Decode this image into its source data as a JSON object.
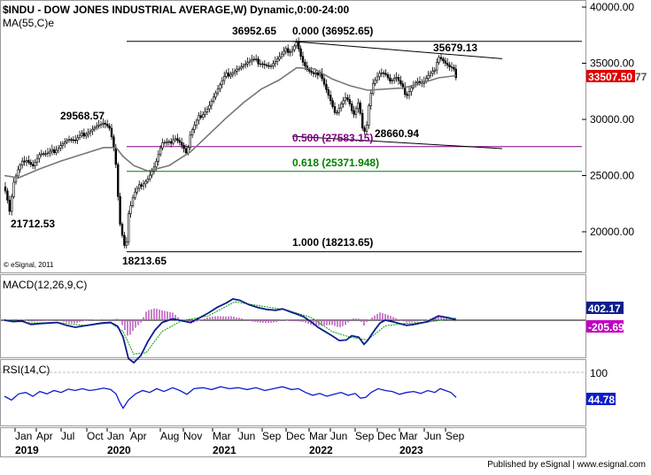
{
  "chart_data": [
    {
      "type": "candlestick",
      "title": "$INDU - DOW JONES INDUSTRIAL AVERAGE,W) Dynamic,0:00-24:00",
      "indicator_label": "MA(55,C)e",
      "watermark": "© eSignal, 2011",
      "last_price": "33507.50",
      "last_price_suffix": "77",
      "y_ticks": [
        "40000.00",
        "35000.00",
        "30000.00",
        "25000.00",
        "20000.00"
      ],
      "ylim": [
        16000,
        40700
      ],
      "x_ticks": [
        "Jan",
        "Apr",
        "Jul",
        "Oct",
        "Jan",
        "Apr",
        "Aug",
        "Nov",
        "Mar",
        "Jun",
        "Sep",
        "Dec",
        "Mar",
        "Jun",
        "Sep",
        "Dec",
        "Mar",
        "Jun",
        "Sep"
      ],
      "x_years": [
        "2019",
        "2020",
        "2021",
        "2022",
        "2023"
      ],
      "annotations": [
        {
          "text": "36952.65",
          "value": 36952.65
        },
        {
          "text": "35679.13",
          "value": 35679.13
        },
        {
          "text": "29568.57",
          "value": 29568.57
        },
        {
          "text": "21712.53",
          "value": 21712.53
        },
        {
          "text": "18213.65",
          "value": 18213.65
        },
        {
          "text": "28660.94",
          "value": 28660.94
        }
      ],
      "fibonacci": [
        {
          "label": "0.000 (36952.65)",
          "value": 36952.65,
          "color": "#000000"
        },
        {
          "label": "0.500 (27583.15)",
          "value": 27583.15,
          "color": "#800080"
        },
        {
          "label": "0.618 (25371.948)",
          "value": 25371.948,
          "color": "#008000"
        },
        {
          "label": "1.000 (18213.65)",
          "value": 18213.65,
          "color": "#000000"
        }
      ],
      "trendlines": [
        {
          "from": {
            "date": "2021-12",
            "value": 36952.65
          },
          "to": {
            "date": "2023-09",
            "value": 35400
          }
        },
        {
          "from": {
            "date": "2022-03",
            "value": 28500
          },
          "to": {
            "date": "2023-09",
            "value": 27400
          }
        }
      ],
      "price_path": [
        [
          0,
          24000
        ],
        [
          3,
          23000
        ],
        [
          6,
          21700
        ],
        [
          10,
          24200
        ],
        [
          16,
          25500
        ],
        [
          24,
          26600
        ],
        [
          32,
          25900
        ],
        [
          40,
          26900
        ],
        [
          48,
          26800
        ],
        [
          56,
          27200
        ],
        [
          64,
          27800
        ],
        [
          72,
          28200
        ],
        [
          80,
          28000
        ],
        [
          88,
          28600
        ],
        [
          96,
          29000
        ],
        [
          104,
          29400
        ],
        [
          112,
          29568
        ],
        [
          118,
          29100
        ],
        [
          122,
          28500
        ],
        [
          126,
          26000
        ],
        [
          130,
          21000
        ],
        [
          134,
          19300
        ],
        [
          137,
          18213
        ],
        [
          140,
          21500
        ],
        [
          146,
          23200
        ],
        [
          154,
          24200
        ],
        [
          162,
          24800
        ],
        [
          170,
          25900
        ],
        [
          178,
          27800
        ],
        [
          186,
          27800
        ],
        [
          192,
          28500
        ],
        [
          198,
          28000
        ],
        [
          202,
          27500
        ],
        [
          206,
          26800
        ],
        [
          210,
          28600
        ],
        [
          220,
          30200
        ],
        [
          230,
          31100
        ],
        [
          240,
          32500
        ],
        [
          250,
          33900
        ],
        [
          260,
          34400
        ],
        [
          270,
          34800
        ],
        [
          280,
          35200
        ],
        [
          290,
          35100
        ],
        [
          300,
          34700
        ],
        [
          310,
          35400
        ],
        [
          318,
          36100
        ],
        [
          324,
          36200
        ],
        [
          330,
          36952
        ],
        [
          336,
          35200
        ],
        [
          342,
          34300
        ],
        [
          350,
          33800
        ],
        [
          356,
          34300
        ],
        [
          362,
          33000
        ],
        [
          368,
          31700
        ],
        [
          374,
          30300
        ],
        [
          380,
          31200
        ],
        [
          388,
          32000
        ],
        [
          394,
          30400
        ],
        [
          400,
          31600
        ],
        [
          404,
          29200
        ],
        [
          408,
          28661
        ],
        [
          412,
          31500
        ],
        [
          418,
          33600
        ],
        [
          424,
          34300
        ],
        [
          430,
          34100
        ],
        [
          436,
          33300
        ],
        [
          442,
          33700
        ],
        [
          448,
          32900
        ],
        [
          454,
          32200
        ],
        [
          460,
          33000
        ],
        [
          466,
          33400
        ],
        [
          472,
          33100
        ],
        [
          478,
          33700
        ],
        [
          484,
          34100
        ],
        [
          490,
          35679
        ],
        [
          494,
          35400
        ],
        [
          498,
          35000
        ],
        [
          503,
          34600
        ],
        [
          507,
          34500
        ],
        [
          510,
          33507
        ]
      ],
      "ma_path": [
        [
          0,
          25000
        ],
        [
          16,
          24800
        ],
        [
          40,
          25600
        ],
        [
          64,
          26300
        ],
        [
          88,
          26900
        ],
        [
          112,
          27500
        ],
        [
          126,
          27500
        ],
        [
          134,
          26700
        ],
        [
          146,
          25900
        ],
        [
          162,
          25400
        ],
        [
          186,
          25900
        ],
        [
          210,
          27100
        ],
        [
          230,
          28600
        ],
        [
          250,
          30100
        ],
        [
          270,
          31500
        ],
        [
          290,
          32700
        ],
        [
          310,
          33500
        ],
        [
          330,
          34600
        ],
        [
          350,
          34500
        ],
        [
          370,
          33600
        ],
        [
          390,
          33000
        ],
        [
          410,
          32600
        ],
        [
          430,
          32700
        ],
        [
          450,
          32800
        ],
        [
          470,
          33200
        ],
        [
          490,
          33700
        ],
        [
          510,
          33900
        ]
      ]
    },
    {
      "type": "line",
      "title": "MACD(12,26,9,C)",
      "values_shown": [
        "402.17",
        "-205.69"
      ],
      "macd_path": [
        [
          0,
          0
        ],
        [
          10,
          -5
        ],
        [
          20,
          -3
        ],
        [
          30,
          -15
        ],
        [
          40,
          -12
        ],
        [
          50,
          -10
        ],
        [
          60,
          -8
        ],
        [
          70,
          -18
        ],
        [
          80,
          -25
        ],
        [
          90,
          -20
        ],
        [
          100,
          -15
        ],
        [
          110,
          -10
        ],
        [
          120,
          -8
        ],
        [
          128,
          -22
        ],
        [
          134,
          -60
        ],
        [
          140,
          -135
        ],
        [
          146,
          -150
        ],
        [
          154,
          -125
        ],
        [
          162,
          -75
        ],
        [
          170,
          -35
        ],
        [
          178,
          -8
        ],
        [
          190,
          5
        ],
        [
          200,
          -2
        ],
        [
          210,
          -8
        ],
        [
          220,
          8
        ],
        [
          230,
          25
        ],
        [
          240,
          45
        ],
        [
          250,
          60
        ],
        [
          258,
          75
        ],
        [
          266,
          70
        ],
        [
          276,
          55
        ],
        [
          286,
          45
        ],
        [
          296,
          38
        ],
        [
          306,
          35
        ],
        [
          314,
          40
        ],
        [
          324,
          28
        ],
        [
          330,
          22
        ],
        [
          338,
          12
        ],
        [
          346,
          -5
        ],
        [
          354,
          -25
        ],
        [
          362,
          -40
        ],
        [
          370,
          -55
        ],
        [
          378,
          -72
        ],
        [
          386,
          -70
        ],
        [
          392,
          -55
        ],
        [
          400,
          -60
        ],
        [
          406,
          -85
        ],
        [
          410,
          -72
        ],
        [
          418,
          -35
        ],
        [
          424,
          -10
        ],
        [
          430,
          0
        ],
        [
          438,
          -5
        ],
        [
          446,
          -12
        ],
        [
          454,
          -18
        ],
        [
          462,
          -15
        ],
        [
          470,
          -10
        ],
        [
          478,
          -5
        ],
        [
          484,
          5
        ],
        [
          490,
          15
        ],
        [
          496,
          12
        ],
        [
          502,
          8
        ],
        [
          510,
          2
        ]
      ],
      "signal_path": [
        [
          0,
          2
        ],
        [
          30,
          -10
        ],
        [
          60,
          -8
        ],
        [
          90,
          -18
        ],
        [
          120,
          -10
        ],
        [
          134,
          -40
        ],
        [
          146,
          -120
        ],
        [
          160,
          -115
        ],
        [
          178,
          -40
        ],
        [
          200,
          -2
        ],
        [
          230,
          15
        ],
        [
          260,
          65
        ],
        [
          290,
          50
        ],
        [
          320,
          35
        ],
        [
          346,
          10
        ],
        [
          370,
          -40
        ],
        [
          390,
          -60
        ],
        [
          410,
          -70
        ],
        [
          430,
          -20
        ],
        [
          450,
          -12
        ],
        [
          480,
          -6
        ],
        [
          510,
          8
        ]
      ]
    },
    {
      "type": "line",
      "title": "RSI(14,C)",
      "y_ticks": [
        "100"
      ],
      "values_shown": [
        "44.78"
      ],
      "rsi_path": [
        [
          0,
          50
        ],
        [
          8,
          42
        ],
        [
          16,
          55
        ],
        [
          24,
          58
        ],
        [
          32,
          50
        ],
        [
          40,
          60
        ],
        [
          48,
          55
        ],
        [
          56,
          62
        ],
        [
          64,
          58
        ],
        [
          72,
          65
        ],
        [
          80,
          62
        ],
        [
          88,
          66
        ],
        [
          96,
          62
        ],
        [
          104,
          64
        ],
        [
          112,
          67
        ],
        [
          120,
          64
        ],
        [
          126,
          55
        ],
        [
          130,
          38
        ],
        [
          134,
          25
        ],
        [
          140,
          42
        ],
        [
          148,
          55
        ],
        [
          156,
          62
        ],
        [
          164,
          58
        ],
        [
          172,
          66
        ],
        [
          180,
          60
        ],
        [
          190,
          68
        ],
        [
          198,
          62
        ],
        [
          206,
          54
        ],
        [
          214,
          66
        ],
        [
          224,
          68
        ],
        [
          234,
          64
        ],
        [
          244,
          70
        ],
        [
          254,
          66
        ],
        [
          264,
          68
        ],
        [
          274,
          64
        ],
        [
          284,
          68
        ],
        [
          294,
          62
        ],
        [
          304,
          66
        ],
        [
          314,
          70
        ],
        [
          324,
          64
        ],
        [
          332,
          66
        ],
        [
          340,
          58
        ],
        [
          348,
          52
        ],
        [
          356,
          56
        ],
        [
          364,
          50
        ],
        [
          372,
          54
        ],
        [
          380,
          58
        ],
        [
          388,
          52
        ],
        [
          396,
          56
        ],
        [
          402,
          46
        ],
        [
          408,
          48
        ],
        [
          414,
          58
        ],
        [
          422,
          66
        ],
        [
          430,
          62
        ],
        [
          438,
          60
        ],
        [
          446,
          54
        ],
        [
          454,
          58
        ],
        [
          462,
          60
        ],
        [
          470,
          56
        ],
        [
          478,
          62
        ],
        [
          486,
          58
        ],
        [
          492,
          66
        ],
        [
          498,
          62
        ],
        [
          504,
          58
        ],
        [
          510,
          48
        ]
      ]
    }
  ],
  "footer": {
    "publisher": "Published by eSignal | www.esignal.com"
  }
}
